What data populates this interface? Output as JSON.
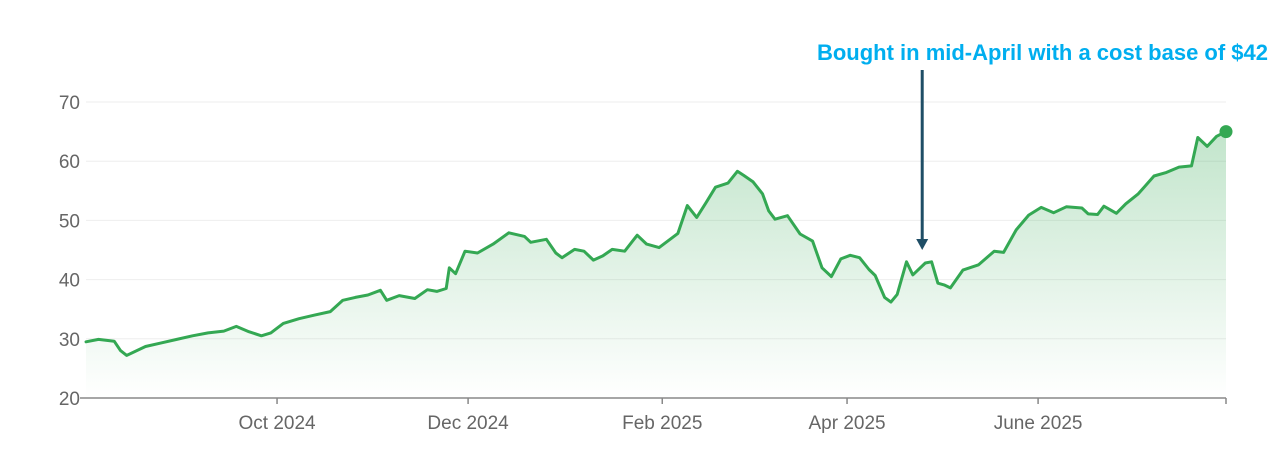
{
  "chart_data": {
    "type": "area",
    "title": "",
    "xlabel": "",
    "ylabel": "",
    "ylim": [
      20,
      70
    ],
    "yticks": [
      20,
      30,
      40,
      50,
      60,
      70
    ],
    "xlim": [
      "2024-08-01",
      "2025-07-31"
    ],
    "xticks": [
      {
        "date": "2024-10-01",
        "label": "Oct 2024"
      },
      {
        "date": "2024-12-01",
        "label": "Dec 2024"
      },
      {
        "date": "2025-02-01",
        "label": "Feb 2025"
      },
      {
        "date": "2025-04-01",
        "label": "Apr 2025"
      },
      {
        "date": "2025-06-01",
        "label": "June 2025"
      }
    ],
    "grid": true,
    "line_color": "#34a853",
    "series": [
      {
        "name": "",
        "points": [
          [
            "2024-08-01",
            29.5
          ],
          [
            "2024-08-05",
            29.9
          ],
          [
            "2024-08-10",
            29.6
          ],
          [
            "2024-08-12",
            28.0
          ],
          [
            "2024-08-14",
            27.2
          ],
          [
            "2024-08-20",
            28.7
          ],
          [
            "2024-08-25",
            29.3
          ],
          [
            "2024-08-30",
            29.9
          ],
          [
            "2024-09-04",
            30.5
          ],
          [
            "2024-09-09",
            31.0
          ],
          [
            "2024-09-14",
            31.3
          ],
          [
            "2024-09-18",
            32.1
          ],
          [
            "2024-09-22",
            31.2
          ],
          [
            "2024-09-26",
            30.5
          ],
          [
            "2024-09-29",
            31.0
          ],
          [
            "2024-10-03",
            32.6
          ],
          [
            "2024-10-08",
            33.4
          ],
          [
            "2024-10-13",
            34.0
          ],
          [
            "2024-10-18",
            34.6
          ],
          [
            "2024-10-22",
            36.5
          ],
          [
            "2024-10-26",
            37.0
          ],
          [
            "2024-10-30",
            37.4
          ],
          [
            "2024-11-03",
            38.2
          ],
          [
            "2024-11-05",
            36.5
          ],
          [
            "2024-11-09",
            37.3
          ],
          [
            "2024-11-14",
            36.8
          ],
          [
            "2024-11-18",
            38.3
          ],
          [
            "2024-11-21",
            38.0
          ],
          [
            "2024-11-24",
            38.5
          ],
          [
            "2024-11-25",
            42.0
          ],
          [
            "2024-11-27",
            41.0
          ],
          [
            "2024-11-30",
            44.8
          ],
          [
            "2024-12-04",
            44.5
          ],
          [
            "2024-12-09",
            46.0
          ],
          [
            "2024-12-14",
            47.9
          ],
          [
            "2024-12-19",
            47.3
          ],
          [
            "2024-12-21",
            46.3
          ],
          [
            "2024-12-26",
            46.8
          ],
          [
            "2024-12-29",
            44.5
          ],
          [
            "2024-12-31",
            43.7
          ],
          [
            "2025-01-04",
            45.1
          ],
          [
            "2025-01-07",
            44.8
          ],
          [
            "2025-01-10",
            43.3
          ],
          [
            "2025-01-13",
            44.0
          ],
          [
            "2025-01-16",
            45.1
          ],
          [
            "2025-01-20",
            44.8
          ],
          [
            "2025-01-24",
            47.5
          ],
          [
            "2025-01-27",
            46.0
          ],
          [
            "2025-01-31",
            45.4
          ],
          [
            "2025-02-06",
            47.8
          ],
          [
            "2025-02-09",
            52.5
          ],
          [
            "2025-02-12",
            50.5
          ],
          [
            "2025-02-15",
            53.0
          ],
          [
            "2025-02-18",
            55.6
          ],
          [
            "2025-02-22",
            56.3
          ],
          [
            "2025-02-25",
            58.3
          ],
          [
            "2025-02-27",
            57.6
          ],
          [
            "2025-03-02",
            56.5
          ],
          [
            "2025-03-05",
            54.5
          ],
          [
            "2025-03-07",
            51.6
          ],
          [
            "2025-03-09",
            50.2
          ],
          [
            "2025-03-13",
            50.8
          ],
          [
            "2025-03-17",
            47.7
          ],
          [
            "2025-03-21",
            46.5
          ],
          [
            "2025-03-24",
            42.0
          ],
          [
            "2025-03-27",
            40.5
          ],
          [
            "2025-03-30",
            43.5
          ],
          [
            "2025-04-02",
            44.1
          ],
          [
            "2025-04-05",
            43.7
          ],
          [
            "2025-04-08",
            41.7
          ],
          [
            "2025-04-10",
            40.7
          ],
          [
            "2025-04-13",
            37.0
          ],
          [
            "2025-04-15",
            36.2
          ],
          [
            "2025-04-17",
            37.5
          ],
          [
            "2025-04-20",
            43.0
          ],
          [
            "2025-04-22",
            40.8
          ],
          [
            "2025-04-26",
            42.8
          ],
          [
            "2025-04-28",
            43.0
          ],
          [
            "2025-04-30",
            39.4
          ],
          [
            "2025-05-02",
            39.1
          ],
          [
            "2025-05-04",
            38.6
          ],
          [
            "2025-05-08",
            41.6
          ],
          [
            "2025-05-13",
            42.5
          ],
          [
            "2025-05-18",
            44.8
          ],
          [
            "2025-05-21",
            44.6
          ],
          [
            "2025-05-25",
            48.4
          ],
          [
            "2025-05-29",
            50.9
          ],
          [
            "2025-06-02",
            52.2
          ],
          [
            "2025-06-06",
            51.3
          ],
          [
            "2025-06-10",
            52.3
          ],
          [
            "2025-06-15",
            52.1
          ],
          [
            "2025-06-17",
            51.1
          ],
          [
            "2025-06-20",
            51.0
          ],
          [
            "2025-06-22",
            52.4
          ],
          [
            "2025-06-26",
            51.2
          ],
          [
            "2025-06-29",
            52.8
          ],
          [
            "2025-07-03",
            54.5
          ],
          [
            "2025-07-08",
            57.5
          ],
          [
            "2025-07-12",
            58.1
          ],
          [
            "2025-07-16",
            59.0
          ],
          [
            "2025-07-20",
            59.2
          ],
          [
            "2025-07-22",
            64.0
          ],
          [
            "2025-07-25",
            62.5
          ],
          [
            "2025-07-28",
            64.2
          ],
          [
            "2025-07-31",
            65.0
          ]
        ]
      }
    ],
    "endpoint_marker": {
      "date": "2025-07-31",
      "value": 65.0
    },
    "annotations": [
      {
        "text": "Bought in mid-April with a cost base of $42",
        "color": "#00aeef",
        "arrow_color": "#1f4e66",
        "target_date": "2025-04-25",
        "target_value": 45
      }
    ]
  }
}
